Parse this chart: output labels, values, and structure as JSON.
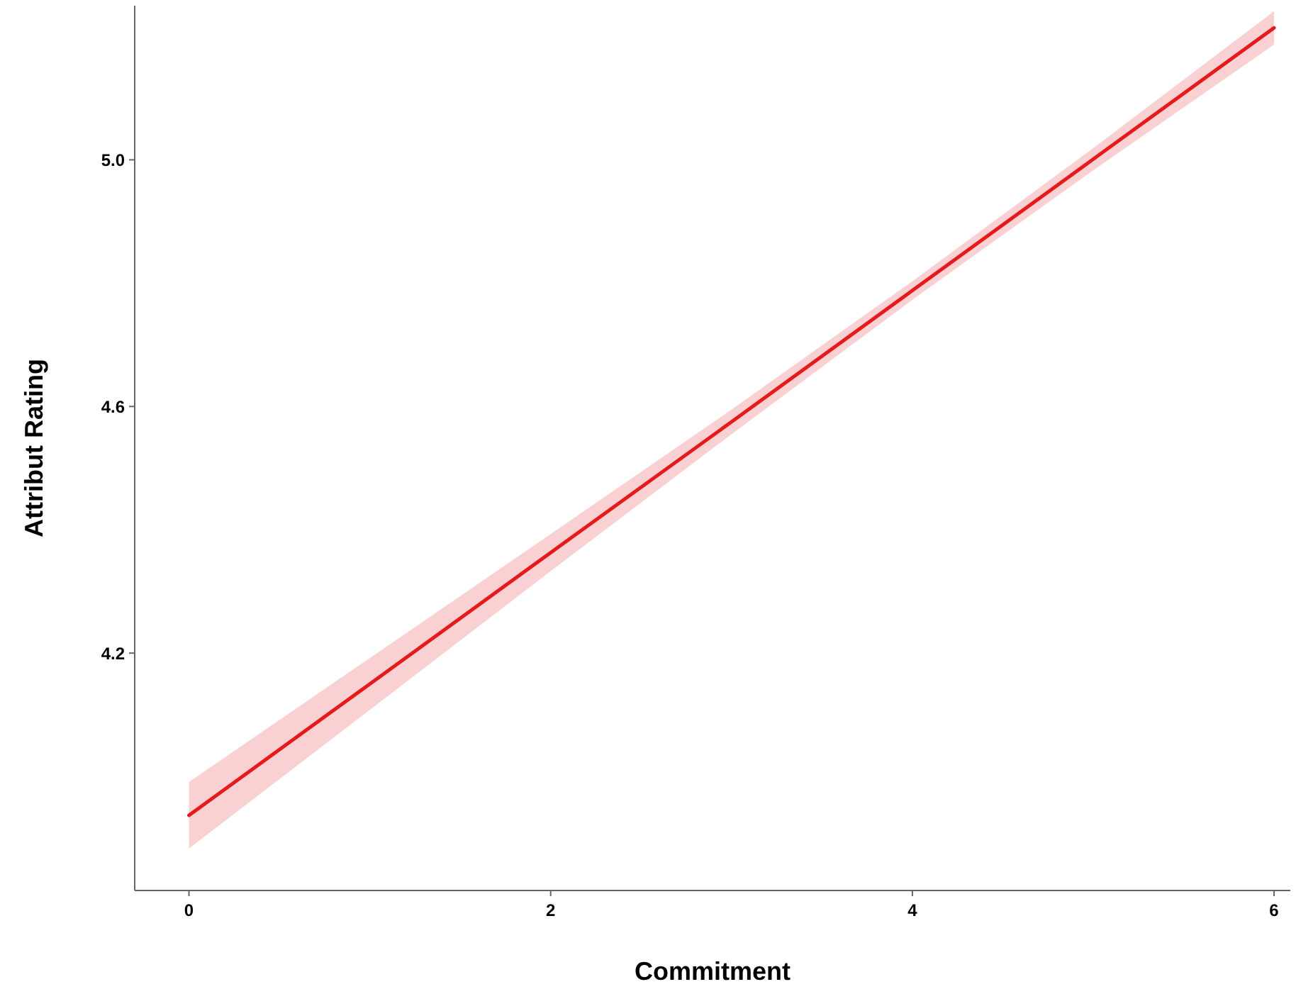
{
  "chart_data": {
    "type": "line",
    "xlabel": "Commitment",
    "ylabel": "Attribut Rating",
    "xlim": [
      -0.3,
      6.09
    ],
    "ylim": [
      3.815,
      5.25
    ],
    "xticks": [
      0,
      2,
      4,
      6
    ],
    "yticks": [
      {
        "value": 4.2,
        "label": "4.2"
      },
      {
        "value": 4.6,
        "label": "4.6"
      },
      {
        "value": 5.0,
        "label": "5.0"
      }
    ],
    "grid": false,
    "marker": "none",
    "line_style": "solid",
    "series": [
      {
        "color": "#e41a1c",
        "x": [
          0,
          1,
          2,
          3,
          4,
          5,
          6
        ],
        "values": [
          3.937,
          4.15,
          4.363,
          4.575,
          4.788,
          5.001,
          5.214
        ],
        "lower": [
          3.883,
          4.108,
          4.333,
          4.555,
          4.773,
          4.983,
          5.187
        ],
        "upper": [
          3.991,
          4.192,
          4.393,
          4.595,
          4.803,
          5.019,
          5.241
        ]
      }
    ]
  }
}
